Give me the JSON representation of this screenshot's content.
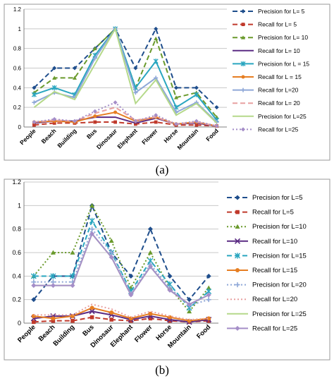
{
  "chart_data": [
    {
      "type": "line",
      "caption": "(a)",
      "ylim": [
        0,
        1.2
      ],
      "yticks": [
        "0",
        "0.2",
        "0.4",
        "0.6",
        "0.8",
        "1",
        "1.2"
      ],
      "grid": true,
      "legend": "right",
      "categories": [
        "People",
        "Beach",
        "Building",
        "Bus",
        "Dinosaur",
        "Elephant",
        "Flower",
        "Horse",
        "Mountain",
        "Food"
      ],
      "series": [
        {
          "name": "Precision for L= 5",
          "color": "#1f4e8c",
          "dash": "7,4",
          "marker": "diamond",
          "values": [
            0.4,
            0.6,
            0.6,
            0.8,
            1.0,
            0.6,
            1.0,
            0.4,
            0.4,
            0.2
          ]
        },
        {
          "name": "Recall for L= 5",
          "color": "#c0392b",
          "dash": "7,4",
          "marker": "square",
          "values": [
            0.02,
            0.04,
            0.04,
            0.05,
            0.05,
            0.03,
            0.05,
            0.02,
            0.02,
            0.01
          ]
        },
        {
          "name": "Precision for L= 10",
          "color": "#6a9a2c",
          "dash": "7,4",
          "marker": "triangle",
          "values": [
            0.35,
            0.5,
            0.5,
            0.8,
            1.0,
            0.4,
            0.9,
            0.3,
            0.35,
            0.1
          ]
        },
        {
          "name": "Recall for L= 10",
          "color": "#5b2c83",
          "dash": "",
          "marker": "none",
          "values": [
            0.04,
            0.06,
            0.06,
            0.1,
            0.1,
            0.04,
            0.09,
            0.03,
            0.04,
            0.01
          ]
        },
        {
          "name": "Precision for L = 15",
          "color": "#2aa6c0",
          "dash": "",
          "marker": "star",
          "values": [
            0.33,
            0.4,
            0.33,
            0.73,
            1.0,
            0.4,
            0.67,
            0.2,
            0.33,
            0.07
          ]
        },
        {
          "name": "Recall for L = 15",
          "color": "#e67e22",
          "dash": "",
          "marker": "circle",
          "values": [
            0.05,
            0.06,
            0.05,
            0.11,
            0.15,
            0.06,
            0.1,
            0.03,
            0.05,
            0.01
          ]
        },
        {
          "name": "Recall for L=20",
          "color": "#8fa8d8",
          "dash": "",
          "marker": "plus",
          "values": [
            0.25,
            0.35,
            0.3,
            0.7,
            1.0,
            0.35,
            0.5,
            0.15,
            0.25,
            0.05
          ]
        },
        {
          "name": "Recall for L= 20",
          "color": "#e8a0a0",
          "dash": "7,4",
          "marker": "none",
          "values": [
            0.05,
            0.07,
            0.06,
            0.14,
            0.2,
            0.07,
            0.1,
            0.03,
            0.05,
            0.01
          ]
        },
        {
          "name": "Precision for L=25",
          "color": "#b5d98a",
          "dash": "",
          "marker": "none",
          "values": [
            0.2,
            0.36,
            0.28,
            0.64,
            1.0,
            0.24,
            0.48,
            0.12,
            0.24,
            0.04
          ]
        },
        {
          "name": "Recall for L=25",
          "color": "#a58ec8",
          "dash": "2,3",
          "marker": "diamond",
          "values": [
            0.05,
            0.08,
            0.06,
            0.16,
            0.25,
            0.06,
            0.12,
            0.03,
            0.06,
            0.01
          ]
        }
      ]
    },
    {
      "type": "line",
      "caption": "(b)",
      "ylim": [
        0,
        1.2
      ],
      "yticks": [
        "0",
        "0.2",
        "0.4",
        "0.6",
        "0.8",
        "1",
        "1.2"
      ],
      "grid": true,
      "legend": "right",
      "categories": [
        "People",
        "Beach",
        "Building",
        "Bus",
        "Dinosaur",
        "Elephant",
        "Flower",
        "Horse",
        "Mountain",
        "Food"
      ],
      "series": [
        {
          "name": "Precision for L=5",
          "color": "#1f4e8c",
          "dash": "7,4",
          "marker": "diamond",
          "values": [
            0.2,
            0.4,
            0.4,
            1.0,
            0.6,
            0.4,
            0.8,
            0.4,
            0.2,
            0.4
          ]
        },
        {
          "name": "Recall for L=5",
          "color": "#c0392b",
          "dash": "7,4",
          "marker": "square",
          "values": [
            0.01,
            0.02,
            0.02,
            0.05,
            0.03,
            0.02,
            0.04,
            0.02,
            0.01,
            0.02
          ]
        },
        {
          "name": "Precision for L=10",
          "color": "#6a9a2c",
          "dash": "2,3",
          "marker": "triangle",
          "values": [
            0.4,
            0.6,
            0.6,
            1.0,
            0.7,
            0.3,
            0.6,
            0.3,
            0.1,
            0.3
          ]
        },
        {
          "name": "Recall for L=10",
          "color": "#5b2c83",
          "dash": "",
          "marker": "x",
          "values": [
            0.04,
            0.06,
            0.06,
            0.1,
            0.07,
            0.03,
            0.06,
            0.03,
            0.01,
            0.03
          ]
        },
        {
          "name": "Precision for L=15",
          "color": "#2aa6c0",
          "dash": "7,4",
          "marker": "star",
          "values": [
            0.4,
            0.4,
            0.4,
            0.87,
            0.6,
            0.27,
            0.53,
            0.33,
            0.13,
            0.27
          ]
        },
        {
          "name": "Recall for L=15",
          "color": "#e67e22",
          "dash": "",
          "marker": "circle",
          "values": [
            0.06,
            0.04,
            0.06,
            0.13,
            0.09,
            0.04,
            0.08,
            0.05,
            0.02,
            0.04
          ]
        },
        {
          "name": "Precision for L=20",
          "color": "#8fa8d8",
          "dash": "2,3",
          "marker": "plus",
          "values": [
            0.35,
            0.35,
            0.35,
            0.8,
            0.6,
            0.25,
            0.5,
            0.3,
            0.15,
            0.2
          ]
        },
        {
          "name": "Recall for L=20",
          "color": "#e8a0a0",
          "dash": "2,3",
          "marker": "none",
          "values": [
            0.07,
            0.07,
            0.07,
            0.16,
            0.12,
            0.05,
            0.1,
            0.06,
            0.03,
            0.04
          ]
        },
        {
          "name": "Precision for L=25",
          "color": "#b5d98a",
          "dash": "",
          "marker": "none",
          "values": [
            0.32,
            0.32,
            0.32,
            0.76,
            0.56,
            0.24,
            0.48,
            0.28,
            0.16,
            0.24
          ]
        },
        {
          "name": "Recall for L=25",
          "color": "#a58ec8",
          "dash": "",
          "marker": "diamond",
          "values": [
            0.32,
            0.32,
            0.32,
            0.76,
            0.56,
            0.24,
            0.48,
            0.28,
            0.16,
            0.24
          ]
        }
      ]
    }
  ]
}
